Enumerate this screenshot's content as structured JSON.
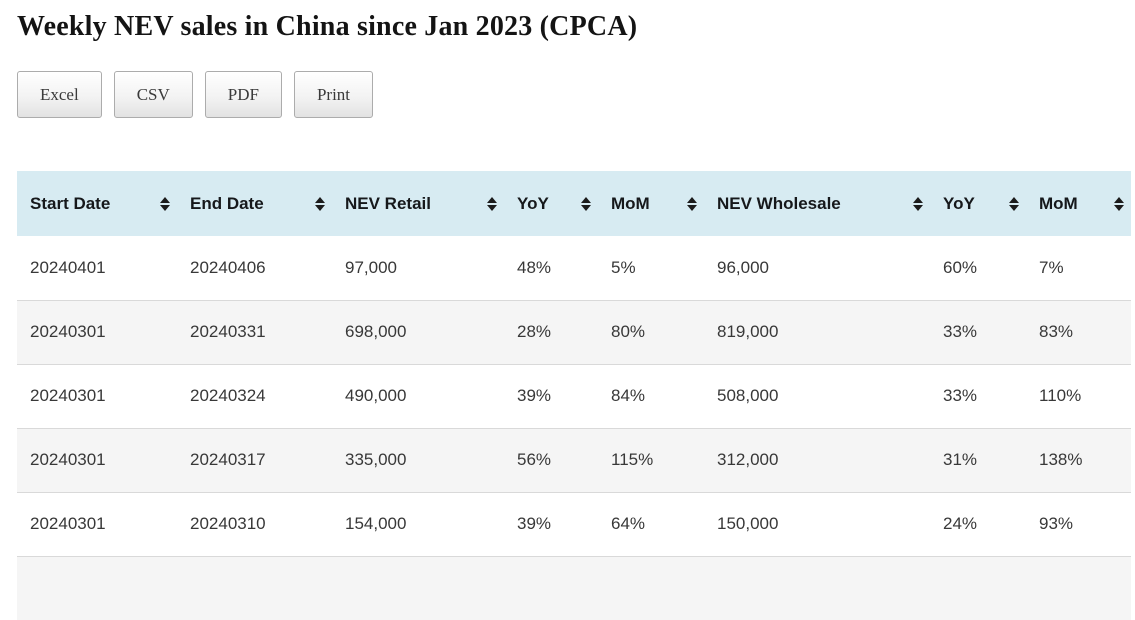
{
  "page": {
    "title": "Weekly NEV sales in China since Jan 2023 (CPCA)"
  },
  "toolbar": {
    "buttons": [
      {
        "label": "Excel"
      },
      {
        "label": "CSV"
      },
      {
        "label": "PDF"
      },
      {
        "label": "Print"
      }
    ]
  },
  "table": {
    "columns": [
      "Start Date",
      "End Date",
      "NEV Retail",
      "YoY",
      "MoM",
      "NEV Wholesale",
      "YoY",
      "MoM"
    ],
    "sort_icon": "sort-both-icon",
    "rows": [
      [
        "20240401",
        "20240406",
        "97,000",
        "48%",
        "5%",
        "96,000",
        "60%",
        "7%"
      ],
      [
        "20240301",
        "20240331",
        "698,000",
        "28%",
        "80%",
        "819,000",
        "33%",
        "83%"
      ],
      [
        "20240301",
        "20240324",
        "490,000",
        "39%",
        "84%",
        "508,000",
        "33%",
        "110%"
      ],
      [
        "20240301",
        "20240317",
        "335,000",
        "56%",
        "115%",
        "312,000",
        "31%",
        "138%"
      ],
      [
        "20240301",
        "20240310",
        "154,000",
        "39%",
        "64%",
        "150,000",
        "24%",
        "93%"
      ]
    ]
  },
  "colors": {
    "header_bg": "#d7ebf2",
    "stripe_bg": "#f5f5f5",
    "row_divider": "#d9d9d9",
    "cell_text": "#383838",
    "header_text": "#16181b"
  }
}
